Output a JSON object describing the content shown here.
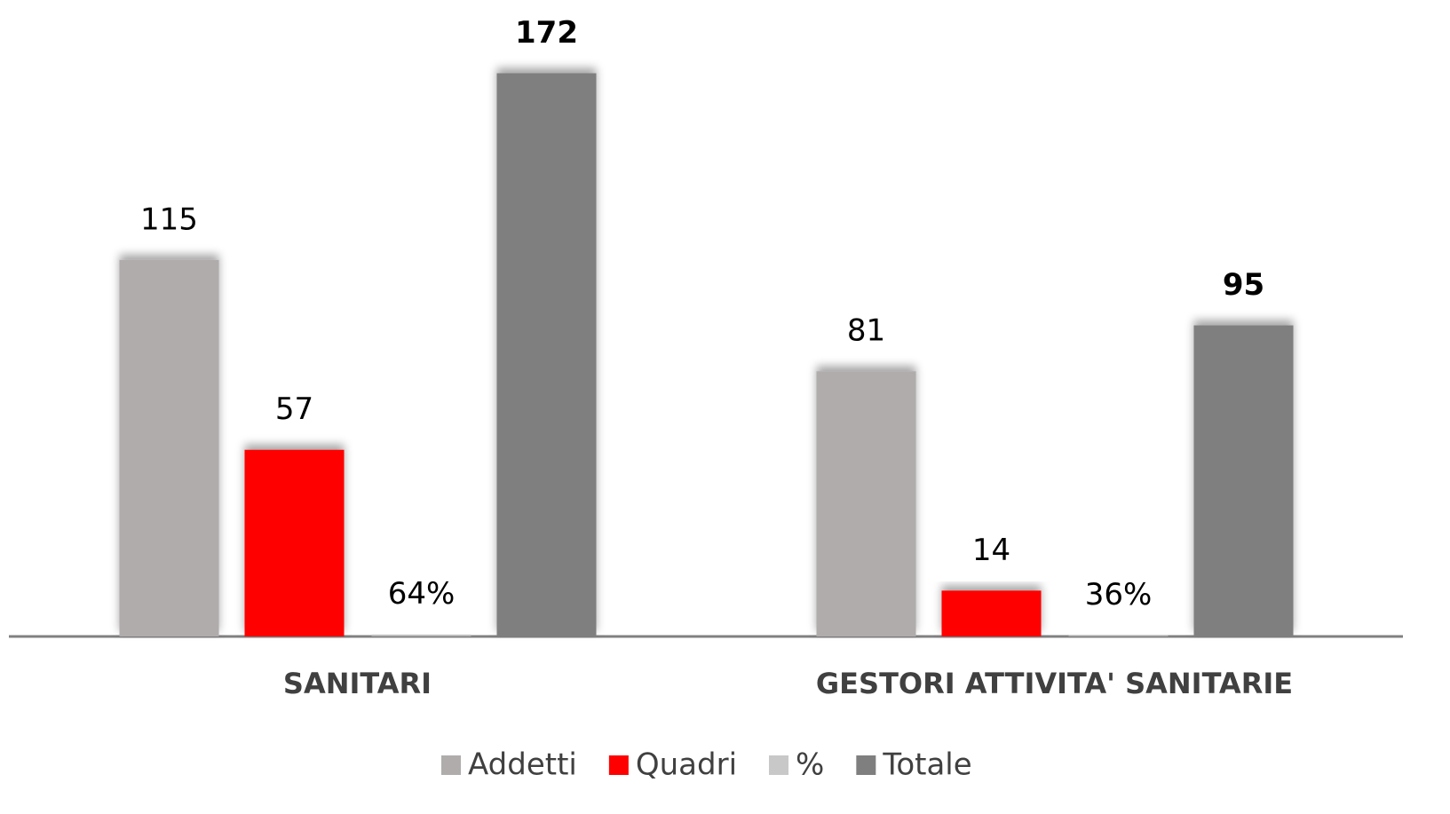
{
  "chart_data": {
    "type": "bar",
    "categories": [
      "SANITARI",
      "GESTORI ATTIVITA' SANITARIE"
    ],
    "series": [
      {
        "name": "Addetti",
        "color": "#b0acac",
        "values": [
          115,
          81
        ]
      },
      {
        "name": "Quadri",
        "color": "#ff0000",
        "values": [
          57,
          14
        ]
      },
      {
        "name": "%",
        "color": "#c8c8c8",
        "values": [
          64,
          36
        ],
        "value_labels": [
          "64%",
          "36%"
        ],
        "axis": "y2"
      },
      {
        "name": "Totale",
        "color": "#7f7f7f",
        "values": [
          172,
          95
        ],
        "bold_labels": true
      }
    ],
    "ylim": [
      0,
      180
    ],
    "y2lim": [
      0,
      18000
    ],
    "grid": false,
    "legend": "bottom"
  }
}
